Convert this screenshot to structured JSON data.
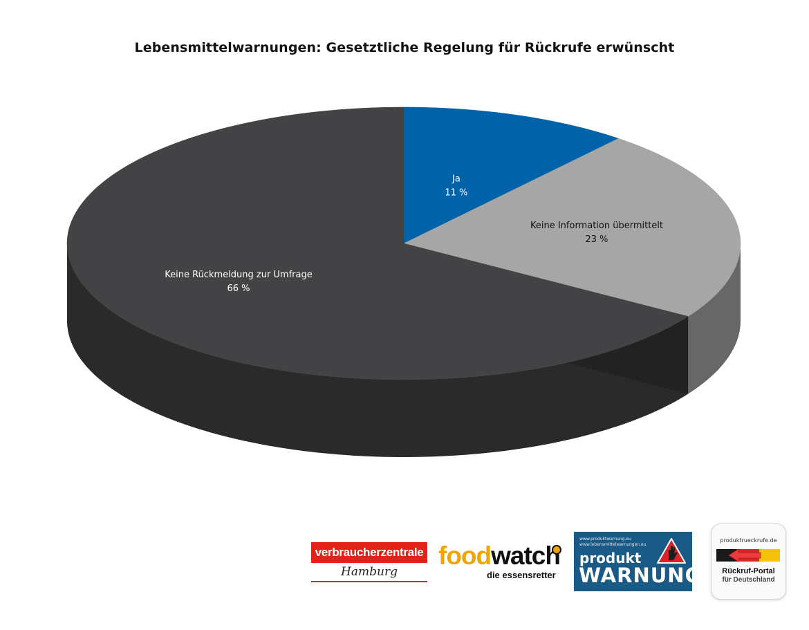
{
  "chart_data": {
    "type": "pie",
    "title": "Lebensmittelwarnungen: Gesetztliche Regelung für Rückrufe erwünscht",
    "slices": [
      {
        "label": "Ja",
        "value": 11,
        "value_label": "11 %",
        "color": "#0062a8",
        "text_color": "#ffffff"
      },
      {
        "label": "Keine Information  übermittelt",
        "value": 23,
        "value_label": "23 %",
        "color": "#a6a6a6",
        "text_color": "#111111"
      },
      {
        "label": "Keine Rückmeldung zur Umfrage",
        "value": 66,
        "value_label": "66 %",
        "color": "#434345",
        "text_color": "#ffffff"
      }
    ],
    "start": "12 o'clock",
    "direction": "clockwise",
    "style": "3d",
    "legend": "none"
  },
  "logos": {
    "verbraucherzentrale": {
      "name": "verbraucherzentrale",
      "city": "Hamburg"
    },
    "foodwatch": {
      "brand_food": "food",
      "brand_watch": "watch",
      "tagline": "die essensretter"
    },
    "produktwarnung": {
      "url1": "www.produktwarnung.eu",
      "url2": "www.lebensmittelwarnungen.eu",
      "line1": "produkt",
      "line2": "WARNUNG"
    },
    "rueckruf_portal": {
      "domain": "produktrueckrufe.de",
      "title": "Rückruf-Portal",
      "subtitle": "für Deutschland"
    }
  }
}
